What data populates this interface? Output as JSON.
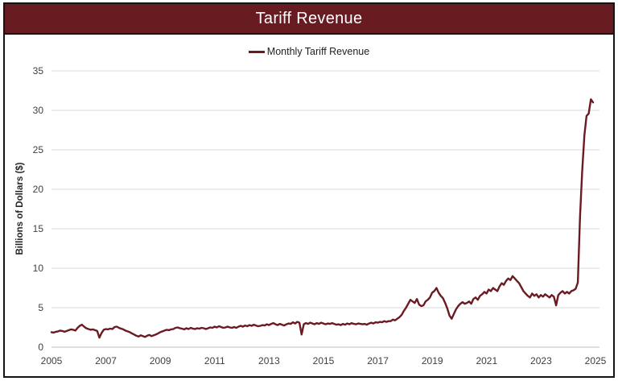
{
  "header": {
    "title": "Tariff Revenue",
    "bg_color": "#691b22",
    "text_color": "#ffffff"
  },
  "legend": {
    "label": "Monthly Tariff Revenue",
    "line_color": "#6b1a22"
  },
  "chart_data": {
    "type": "line",
    "title": "Tariff Revenue",
    "xlabel": "",
    "ylabel": "Billions of Dollars ($)",
    "ylim": [
      0,
      35
    ],
    "y_ticks": [
      0,
      5,
      10,
      15,
      20,
      25,
      30,
      35
    ],
    "x_ticks": [
      2005,
      2007,
      2009,
      2011,
      2013,
      2015,
      2017,
      2019,
      2021,
      2023,
      2025
    ],
    "grid": "horizontal",
    "gridline_color": "#d9d9d9",
    "axis_line_color": "#bfbfbf",
    "legend_position": "top-center",
    "series": [
      {
        "name": "Monthly Tariff Revenue",
        "color": "#6b1a22",
        "frequency": "monthly",
        "start": "2005-01",
        "end": "2025-10",
        "values": [
          1.9,
          1.85,
          1.95,
          2.0,
          2.1,
          2.05,
          1.95,
          2.05,
          2.15,
          2.25,
          2.2,
          2.1,
          2.45,
          2.7,
          2.85,
          2.6,
          2.4,
          2.3,
          2.2,
          2.25,
          2.15,
          2.05,
          1.2,
          1.8,
          2.2,
          2.3,
          2.25,
          2.35,
          2.3,
          2.55,
          2.6,
          2.45,
          2.35,
          2.25,
          2.1,
          2.0,
          1.9,
          1.75,
          1.6,
          1.45,
          1.35,
          1.5,
          1.4,
          1.3,
          1.45,
          1.55,
          1.4,
          1.5,
          1.6,
          1.75,
          1.9,
          2.0,
          2.1,
          2.2,
          2.15,
          2.25,
          2.3,
          2.45,
          2.5,
          2.4,
          2.35,
          2.25,
          2.4,
          2.3,
          2.45,
          2.35,
          2.3,
          2.4,
          2.35,
          2.45,
          2.4,
          2.3,
          2.4,
          2.5,
          2.45,
          2.6,
          2.5,
          2.65,
          2.55,
          2.45,
          2.5,
          2.6,
          2.5,
          2.45,
          2.55,
          2.45,
          2.6,
          2.7,
          2.6,
          2.75,
          2.65,
          2.8,
          2.7,
          2.85,
          2.75,
          2.65,
          2.7,
          2.8,
          2.75,
          2.9,
          2.8,
          2.95,
          3.05,
          2.9,
          2.8,
          2.95,
          2.85,
          2.75,
          2.9,
          3.0,
          2.95,
          3.15,
          3.0,
          3.2,
          3.1,
          1.6,
          2.9,
          3.05,
          2.95,
          3.1,
          3.0,
          2.9,
          3.05,
          2.95,
          3.1,
          3.0,
          2.9,
          3.0,
          2.95,
          3.05,
          2.95,
          2.85,
          2.9,
          2.8,
          2.95,
          2.85,
          3.0,
          2.9,
          3.05,
          2.95,
          2.9,
          3.0,
          2.95,
          2.9,
          2.95,
          2.85,
          3.0,
          3.1,
          3.0,
          3.15,
          3.1,
          3.2,
          3.15,
          3.3,
          3.2,
          3.3,
          3.3,
          3.5,
          3.4,
          3.6,
          3.8,
          4.1,
          4.6,
          5.0,
          5.5,
          6.0,
          5.8,
          5.6,
          6.1,
          5.4,
          5.2,
          5.3,
          5.8,
          6.0,
          6.3,
          6.9,
          7.1,
          7.5,
          6.9,
          6.5,
          6.2,
          5.6,
          4.9,
          4.0,
          3.6,
          4.2,
          4.8,
          5.2,
          5.5,
          5.7,
          5.5,
          5.6,
          5.8,
          5.5,
          6.1,
          6.3,
          6.0,
          6.5,
          6.7,
          7.0,
          6.8,
          7.3,
          7.1,
          7.5,
          7.3,
          7.1,
          7.7,
          8.1,
          7.9,
          8.4,
          8.7,
          8.5,
          9.0,
          8.7,
          8.4,
          8.1,
          7.6,
          7.1,
          6.8,
          6.5,
          6.3,
          6.8,
          6.5,
          6.7,
          6.3,
          6.6,
          6.4,
          6.7,
          6.5,
          6.3,
          6.6,
          6.4,
          5.3,
          6.6,
          6.9,
          7.1,
          6.8,
          7.0,
          6.8,
          7.1,
          7.2,
          7.4,
          8.2,
          16.5,
          22.3,
          26.8,
          29.3,
          29.6,
          31.4,
          31.0
        ]
      }
    ]
  }
}
